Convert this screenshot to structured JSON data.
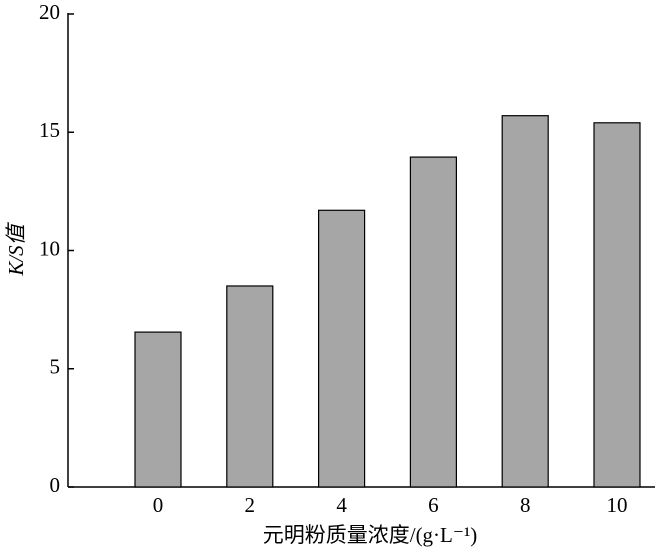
{
  "chart_data": {
    "type": "bar",
    "x_label": "元明粉质量浓度/(g·L⁻¹)",
    "y_label": "K/S值",
    "categories": [
      "0",
      "2",
      "4",
      "6",
      "8",
      "10"
    ],
    "values": [
      6.55,
      8.5,
      11.7,
      13.95,
      15.7,
      15.4
    ],
    "color": "#a6a6a6",
    "ylim": [
      0,
      20
    ],
    "yticks": [
      0,
      5,
      10,
      15,
      20
    ],
    "grid": false
  }
}
